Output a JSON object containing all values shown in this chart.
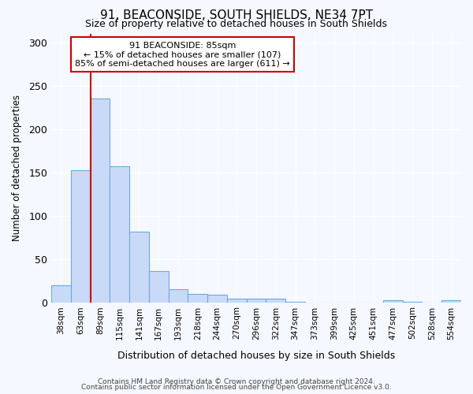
{
  "title": "91, BEACONSIDE, SOUTH SHIELDS, NE34 7PT",
  "subtitle": "Size of property relative to detached houses in South Shields",
  "xlabel": "Distribution of detached houses by size in South Shields",
  "ylabel": "Number of detached properties",
  "categories": [
    "38sqm",
    "63sqm",
    "89sqm",
    "115sqm",
    "141sqm",
    "167sqm",
    "193sqm",
    "218sqm",
    "244sqm",
    "270sqm",
    "296sqm",
    "322sqm",
    "347sqm",
    "373sqm",
    "399sqm",
    "425sqm",
    "451sqm",
    "477sqm",
    "502sqm",
    "528sqm",
    "554sqm"
  ],
  "values": [
    20,
    152,
    235,
    157,
    81,
    36,
    15,
    10,
    9,
    4,
    4,
    4,
    1,
    0,
    0,
    0,
    0,
    2,
    1,
    0,
    2
  ],
  "bar_color": "#c9daf8",
  "bar_edge_color": "#6fa8dc",
  "red_line_x": 1.5,
  "property_label": "91 BEACONSIDE: 85sqm",
  "annotation_line1": "← 15% of detached houses are smaller (107)",
  "annotation_line2": "85% of semi-detached houses are larger (611) →",
  "footer1": "Contains HM Land Registry data © Crown copyright and database right 2024.",
  "footer2": "Contains public sector information licensed under the Open Government Licence v3.0.",
  "ylim": [
    0,
    310
  ],
  "yticks": [
    0,
    50,
    100,
    150,
    200,
    250,
    300
  ],
  "bg_color": "#f5f8ff",
  "annotation_box_color": "#ffffff",
  "annotation_box_edge": "#cc0000",
  "red_line_color": "#cc0000"
}
